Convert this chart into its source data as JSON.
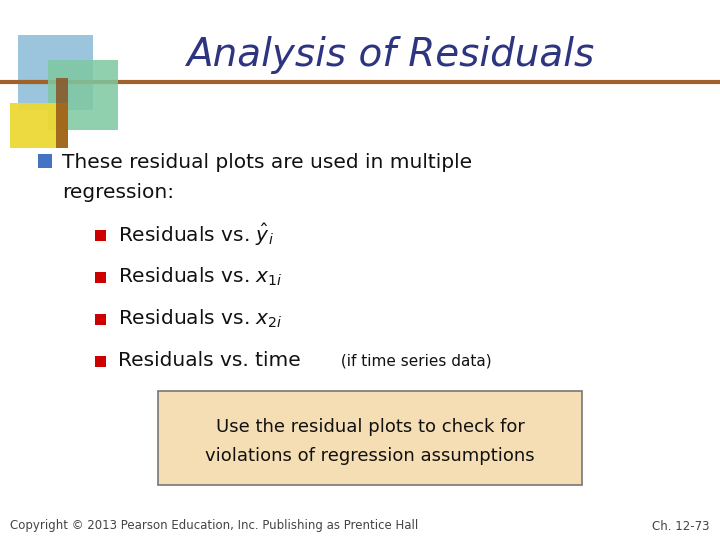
{
  "title": "Analysis of Residuals",
  "title_color": "#2E3580",
  "title_fontsize": 28,
  "bg_color": "#FFFFFF",
  "header_line_color": "#A0622A",
  "bullet1_color": "#4472C4",
  "bullet2_color": "#CC0000",
  "main_text_line1": "These residual plots are used in multiple",
  "main_text_line2": "regression:",
  "box_text_line1": "Use the residual plots to check for",
  "box_text_line2": "violations of regression assumptions",
  "box_bg_color": "#F5DEB3",
  "box_border_color": "#777777",
  "footer_left": "Copyright © 2013 Pearson Education, Inc. Publishing as Prentice Hall",
  "footer_right": "Ch. 12-73",
  "footer_color": "#444444",
  "footer_fontsize": 8.5,
  "logo_blue": "#6BAED6",
  "logo_green": "#74C476",
  "logo_yellow": "#FDD835",
  "logo_brown": "#8B4513"
}
